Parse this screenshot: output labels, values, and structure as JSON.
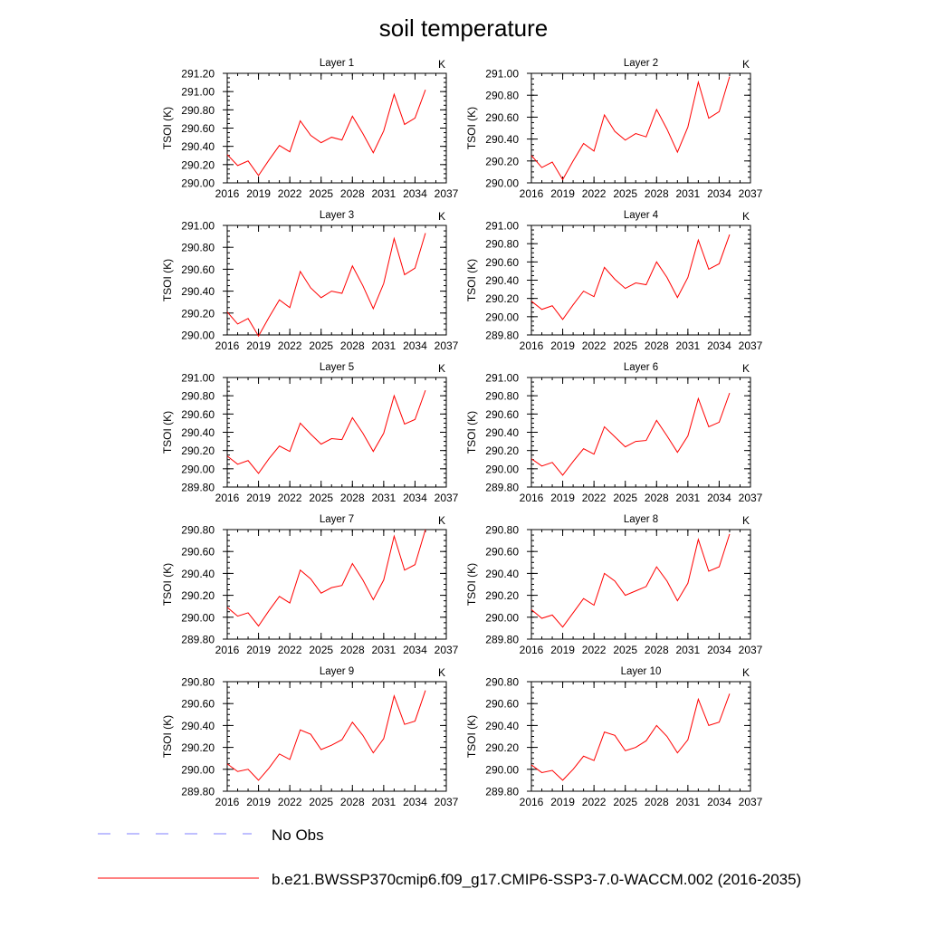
{
  "title": "soil temperature",
  "legend": {
    "items": [
      {
        "label": "No Obs",
        "color": "#7f7fff",
        "style": "dashed"
      },
      {
        "label": "b.e21.BWSSP370cmip6.f09_g17.CMIP6-SSP3-7.0-WACCM.002 (2016-2035)",
        "color": "#ff0000",
        "style": "solid"
      }
    ]
  },
  "chart_data": [
    {
      "type": "line",
      "title": "Layer 1",
      "units": "K",
      "ylabel": "TSOI  (K)",
      "xlim": [
        2016,
        2037
      ],
      "ylim": [
        290.0,
        291.2
      ],
      "xticks": [
        "2016",
        "2019",
        "2022",
        "2025",
        "2028",
        "2031",
        "2034",
        "2037"
      ],
      "yticks": [
        "290.00",
        "290.20",
        "290.40",
        "290.60",
        "290.80",
        "291.00",
        "291.20"
      ],
      "x": [
        2016,
        2017,
        2018,
        2019,
        2020,
        2021,
        2022,
        2023,
        2024,
        2025,
        2026,
        2027,
        2028,
        2029,
        2030,
        2031,
        2032,
        2033,
        2034,
        2035
      ],
      "series": [
        {
          "color": "#ff0000",
          "values": [
            290.31,
            290.19,
            290.24,
            290.08,
            290.25,
            290.41,
            290.34,
            290.68,
            290.52,
            290.44,
            290.5,
            290.47,
            290.73,
            290.54,
            290.33,
            290.57,
            290.97,
            290.64,
            290.71,
            291.02
          ]
        }
      ]
    },
    {
      "type": "line",
      "title": "Layer 2",
      "units": "K",
      "ylabel": "TSOI  (K)",
      "xlim": [
        2016,
        2037
      ],
      "ylim": [
        290.0,
        291.0
      ],
      "xticks": [
        "2016",
        "2019",
        "2022",
        "2025",
        "2028",
        "2031",
        "2034",
        "2037"
      ],
      "yticks": [
        "290.00",
        "290.20",
        "290.40",
        "290.60",
        "290.80",
        "291.00"
      ],
      "x": [
        2016,
        2017,
        2018,
        2019,
        2020,
        2021,
        2022,
        2023,
        2024,
        2025,
        2026,
        2027,
        2028,
        2029,
        2030,
        2031,
        2032,
        2033,
        2034,
        2035
      ],
      "series": [
        {
          "color": "#ff0000",
          "values": [
            290.25,
            290.14,
            290.19,
            290.03,
            290.2,
            290.36,
            290.29,
            290.62,
            290.47,
            290.39,
            290.45,
            290.42,
            290.67,
            290.49,
            290.28,
            290.51,
            290.92,
            290.59,
            290.65,
            290.97
          ]
        }
      ]
    },
    {
      "type": "line",
      "title": "Layer 3",
      "units": "K",
      "ylabel": "TSOI  (K)",
      "xlim": [
        2016,
        2037
      ],
      "ylim": [
        290.0,
        291.0
      ],
      "xticks": [
        "2016",
        "2019",
        "2022",
        "2025",
        "2028",
        "2031",
        "2034",
        "2037"
      ],
      "yticks": [
        "290.00",
        "290.20",
        "290.40",
        "290.60",
        "290.80",
        "291.00"
      ],
      "x": [
        2016,
        2017,
        2018,
        2019,
        2020,
        2021,
        2022,
        2023,
        2024,
        2025,
        2026,
        2027,
        2028,
        2029,
        2030,
        2031,
        2032,
        2033,
        2034,
        2035
      ],
      "series": [
        {
          "color": "#ff0000",
          "values": [
            290.21,
            290.1,
            290.15,
            289.99,
            290.16,
            290.32,
            290.25,
            290.58,
            290.43,
            290.34,
            290.4,
            290.38,
            290.63,
            290.45,
            290.24,
            290.47,
            290.88,
            290.55,
            290.61,
            290.93
          ]
        }
      ]
    },
    {
      "type": "line",
      "title": "Layer 4",
      "units": "K",
      "ylabel": "TSOI  (K)",
      "xlim": [
        2016,
        2037
      ],
      "ylim": [
        289.8,
        291.0
      ],
      "xticks": [
        "2016",
        "2019",
        "2022",
        "2025",
        "2028",
        "2031",
        "2034",
        "2037"
      ],
      "yticks": [
        "289.80",
        "290.00",
        "290.20",
        "290.40",
        "290.60",
        "290.80",
        "291.00"
      ],
      "x": [
        2016,
        2017,
        2018,
        2019,
        2020,
        2021,
        2022,
        2023,
        2024,
        2025,
        2026,
        2027,
        2028,
        2029,
        2030,
        2031,
        2032,
        2033,
        2034,
        2035
      ],
      "series": [
        {
          "color": "#ff0000",
          "values": [
            290.17,
            290.08,
            290.12,
            289.97,
            290.13,
            290.28,
            290.22,
            290.54,
            290.41,
            290.31,
            290.37,
            290.35,
            290.6,
            290.43,
            290.21,
            290.43,
            290.84,
            290.52,
            290.58,
            290.9
          ]
        }
      ]
    },
    {
      "type": "line",
      "title": "Layer 5",
      "units": "K",
      "ylabel": "TSOI  (K)",
      "xlim": [
        2016,
        2037
      ],
      "ylim": [
        289.8,
        291.0
      ],
      "xticks": [
        "2016",
        "2019",
        "2022",
        "2025",
        "2028",
        "2031",
        "2034",
        "2037"
      ],
      "yticks": [
        "289.80",
        "290.00",
        "290.20",
        "290.40",
        "290.60",
        "290.80",
        "291.00"
      ],
      "x": [
        2016,
        2017,
        2018,
        2019,
        2020,
        2021,
        2022,
        2023,
        2024,
        2025,
        2026,
        2027,
        2028,
        2029,
        2030,
        2031,
        2032,
        2033,
        2034,
        2035
      ],
      "series": [
        {
          "color": "#ff0000",
          "values": [
            290.14,
            290.05,
            290.09,
            289.95,
            290.11,
            290.25,
            290.19,
            290.5,
            290.38,
            290.27,
            290.33,
            290.32,
            290.56,
            290.39,
            290.19,
            290.39,
            290.8,
            290.49,
            290.54,
            290.86
          ]
        }
      ]
    },
    {
      "type": "line",
      "title": "Layer 6",
      "units": "K",
      "ylabel": "TSOI  (K)",
      "xlim": [
        2016,
        2037
      ],
      "ylim": [
        289.8,
        291.0
      ],
      "xticks": [
        "2016",
        "2019",
        "2022",
        "2025",
        "2028",
        "2031",
        "2034",
        "2037"
      ],
      "yticks": [
        "289.80",
        "290.00",
        "290.20",
        "290.40",
        "290.60",
        "290.80",
        "291.00"
      ],
      "x": [
        2016,
        2017,
        2018,
        2019,
        2020,
        2021,
        2022,
        2023,
        2024,
        2025,
        2026,
        2027,
        2028,
        2029,
        2030,
        2031,
        2032,
        2033,
        2034,
        2035
      ],
      "series": [
        {
          "color": "#ff0000",
          "values": [
            290.11,
            290.03,
            290.07,
            289.93,
            290.08,
            290.22,
            290.16,
            290.46,
            290.35,
            290.24,
            290.3,
            290.31,
            290.53,
            290.36,
            290.18,
            290.36,
            290.77,
            290.46,
            290.51,
            290.83
          ]
        }
      ]
    },
    {
      "type": "line",
      "title": "Layer 7",
      "units": "K",
      "ylabel": "TSOI  (K)",
      "xlim": [
        2016,
        2037
      ],
      "ylim": [
        289.8,
        290.8
      ],
      "xticks": [
        "2016",
        "2019",
        "2022",
        "2025",
        "2028",
        "2031",
        "2034",
        "2037"
      ],
      "yticks": [
        "289.80",
        "290.00",
        "290.20",
        "290.40",
        "290.60",
        "290.80"
      ],
      "x": [
        2016,
        2017,
        2018,
        2019,
        2020,
        2021,
        2022,
        2023,
        2024,
        2025,
        2026,
        2027,
        2028,
        2029,
        2030,
        2031,
        2032,
        2033,
        2034,
        2035
      ],
      "series": [
        {
          "color": "#ff0000",
          "values": [
            290.09,
            290.01,
            290.04,
            289.92,
            290.06,
            290.19,
            290.13,
            290.43,
            290.35,
            290.22,
            290.27,
            290.29,
            290.49,
            290.34,
            290.16,
            290.34,
            290.74,
            290.43,
            290.48,
            290.8
          ]
        }
      ]
    },
    {
      "type": "line",
      "title": "Layer 8",
      "units": "K",
      "ylabel": "TSOI  (K)",
      "xlim": [
        2016,
        2037
      ],
      "ylim": [
        289.8,
        290.8
      ],
      "xticks": [
        "2016",
        "2019",
        "2022",
        "2025",
        "2028",
        "2031",
        "2034",
        "2037"
      ],
      "yticks": [
        "289.80",
        "290.00",
        "290.20",
        "290.40",
        "290.60",
        "290.80"
      ],
      "x": [
        2016,
        2017,
        2018,
        2019,
        2020,
        2021,
        2022,
        2023,
        2024,
        2025,
        2026,
        2027,
        2028,
        2029,
        2030,
        2031,
        2032,
        2033,
        2034,
        2035
      ],
      "series": [
        {
          "color": "#ff0000",
          "values": [
            290.07,
            289.99,
            290.02,
            289.91,
            290.04,
            290.17,
            290.11,
            290.4,
            290.33,
            290.2,
            290.24,
            290.28,
            290.46,
            290.33,
            290.15,
            290.31,
            290.71,
            290.42,
            290.46,
            290.76
          ]
        }
      ]
    },
    {
      "type": "line",
      "title": "Layer 9",
      "units": "K",
      "ylabel": "TSOI  (K)",
      "xlim": [
        2016,
        2037
      ],
      "ylim": [
        289.8,
        290.8
      ],
      "xticks": [
        "2016",
        "2019",
        "2022",
        "2025",
        "2028",
        "2031",
        "2034",
        "2037"
      ],
      "yticks": [
        "289.80",
        "290.00",
        "290.20",
        "290.40",
        "290.60",
        "290.80"
      ],
      "x": [
        2016,
        2017,
        2018,
        2019,
        2020,
        2021,
        2022,
        2023,
        2024,
        2025,
        2026,
        2027,
        2028,
        2029,
        2030,
        2031,
        2032,
        2033,
        2034,
        2035
      ],
      "series": [
        {
          "color": "#ff0000",
          "values": [
            290.05,
            289.98,
            290.0,
            289.9,
            290.01,
            290.14,
            290.09,
            290.36,
            290.32,
            290.18,
            290.22,
            290.27,
            290.43,
            290.31,
            290.15,
            290.28,
            290.67,
            290.41,
            290.44,
            290.72
          ]
        }
      ]
    },
    {
      "type": "line",
      "title": "Layer 10",
      "units": "K",
      "ylabel": "TSOI  (K)",
      "xlim": [
        2016,
        2037
      ],
      "ylim": [
        289.8,
        290.8
      ],
      "xticks": [
        "2016",
        "2019",
        "2022",
        "2025",
        "2028",
        "2031",
        "2034",
        "2037"
      ],
      "yticks": [
        "289.80",
        "290.00",
        "290.20",
        "290.40",
        "290.60",
        "290.80"
      ],
      "x": [
        2016,
        2017,
        2018,
        2019,
        2020,
        2021,
        2022,
        2023,
        2024,
        2025,
        2026,
        2027,
        2028,
        2029,
        2030,
        2031,
        2032,
        2033,
        2034,
        2035
      ],
      "series": [
        {
          "color": "#ff0000",
          "values": [
            290.04,
            289.97,
            289.99,
            289.9,
            290.0,
            290.12,
            290.08,
            290.34,
            290.31,
            290.17,
            290.2,
            290.26,
            290.4,
            290.3,
            290.15,
            290.27,
            290.64,
            290.4,
            290.43,
            290.69
          ]
        }
      ]
    }
  ]
}
